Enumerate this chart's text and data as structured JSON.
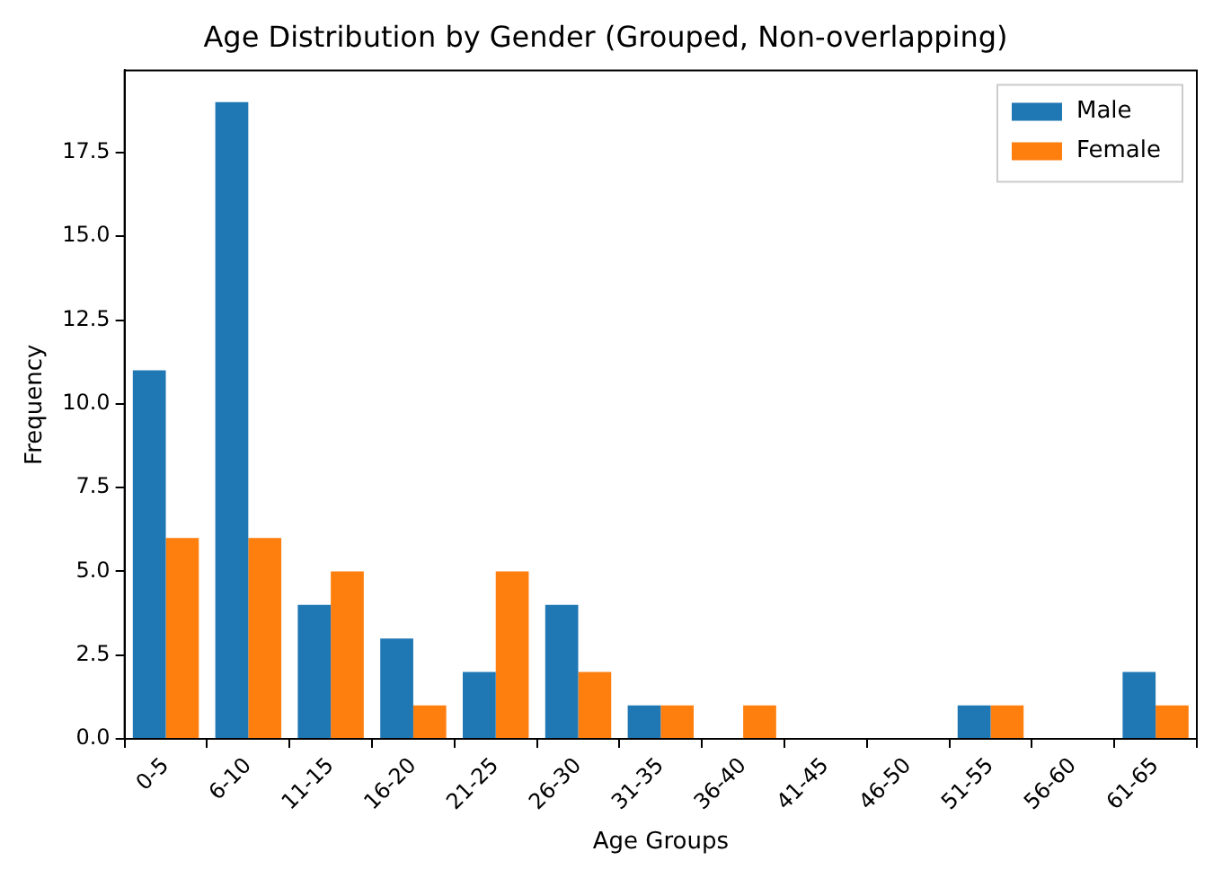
{
  "chart_data": {
    "type": "bar",
    "title": "Age Distribution by Gender (Grouped, Non-overlapping)",
    "xlabel": "Age Groups",
    "ylabel": "Frequency",
    "categories": [
      "0-5",
      "6-10",
      "11-15",
      "16-20",
      "21-25",
      "26-30",
      "31-35",
      "36-40",
      "41-45",
      "46-50",
      "51-55",
      "56-60",
      "61-65"
    ],
    "series": [
      {
        "name": "Male",
        "color": "#1f77b4",
        "values": [
          11,
          19,
          4,
          3,
          2,
          4,
          1,
          0,
          0,
          0,
          1,
          0,
          2
        ]
      },
      {
        "name": "Female",
        "color": "#ff7f0e",
        "values": [
          6,
          6,
          5,
          1,
          5,
          2,
          1,
          1,
          0,
          0,
          1,
          0,
          1
        ]
      }
    ],
    "ylim": [
      0,
      19.95
    ],
    "yticks": [
      {
        "value": 0,
        "label": "0.0"
      },
      2.5,
      {
        "value": 5,
        "label": "5.0"
      },
      7.5,
      {
        "value": 10,
        "label": "10.0"
      },
      12.5,
      {
        "value": 15,
        "label": "15.0"
      },
      17.5
    ],
    "grid": false,
    "legend": "top right"
  }
}
